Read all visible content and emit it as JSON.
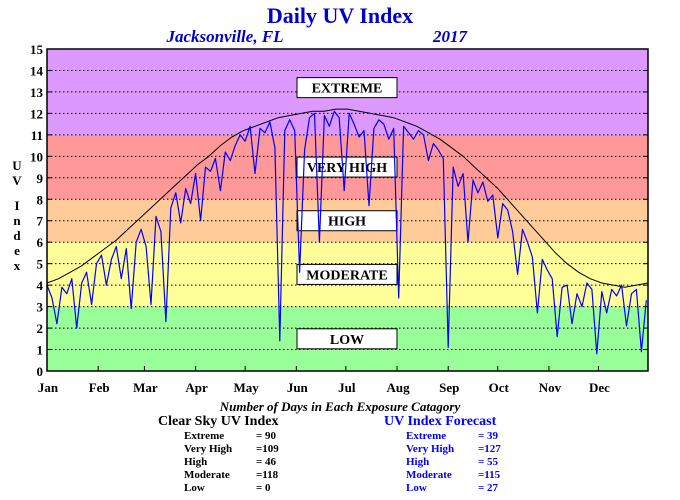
{
  "chart_data": {
    "type": "line",
    "title": "Daily UV Index",
    "location": "Jacksonville, FL",
    "year": "2017",
    "ylabel": "UV Index",
    "ylim": [
      0,
      15
    ],
    "yticks": [
      0,
      1,
      2,
      3,
      4,
      5,
      6,
      7,
      8,
      9,
      10,
      11,
      12,
      13,
      14,
      15
    ],
    "xlim": [
      1,
      365
    ],
    "xticks": [
      {
        "label": "Jan",
        "day": 1
      },
      {
        "label": "Feb",
        "day": 32
      },
      {
        "label": "Mar",
        "day": 60
      },
      {
        "label": "Apr",
        "day": 91
      },
      {
        "label": "May",
        "day": 121
      },
      {
        "label": "Jun",
        "day": 152
      },
      {
        "label": "Jul",
        "day": 182
      },
      {
        "label": "Aug",
        "day": 213
      },
      {
        "label": "Sep",
        "day": 244
      },
      {
        "label": "Oct",
        "day": 274
      },
      {
        "label": "Nov",
        "day": 305
      },
      {
        "label": "Dec",
        "day": 335
      }
    ],
    "grid": "horizontal dotted",
    "zones": [
      {
        "label": "LOW",
        "from": 0,
        "to": 3,
        "color": "#99ff99"
      },
      {
        "label": "MODERATE",
        "from": 3,
        "to": 6,
        "color": "#ffff99"
      },
      {
        "label": "HIGH",
        "from": 6,
        "to": 8,
        "color": "#ffcc99"
      },
      {
        "label": "VERY HIGH",
        "from": 8,
        "to": 11,
        "color": "#ff9999"
      },
      {
        "label": "EXTREME",
        "from": 11,
        "to": 15,
        "color": "#dd99ff"
      }
    ],
    "series": [
      {
        "name": "Clear Sky UV Index",
        "color": "#000000",
        "x": [
          1,
          8,
          15,
          22,
          29,
          36,
          43,
          50,
          57,
          64,
          71,
          78,
          85,
          92,
          99,
          106,
          113,
          120,
          127,
          134,
          141,
          148,
          155,
          162,
          169,
          176,
          183,
          190,
          197,
          204,
          211,
          218,
          225,
          232,
          239,
          246,
          253,
          260,
          267,
          274,
          281,
          288,
          295,
          302,
          309,
          316,
          323,
          330,
          337,
          344,
          351,
          358,
          365
        ],
        "values": [
          4.1,
          4.3,
          4.6,
          4.9,
          5.3,
          5.7,
          6.1,
          6.6,
          7.1,
          7.6,
          8.1,
          8.6,
          9.1,
          9.6,
          10.0,
          10.5,
          10.9,
          11.2,
          11.4,
          11.6,
          11.8,
          11.9,
          12.0,
          12.1,
          12.1,
          12.2,
          12.2,
          12.1,
          12.0,
          11.9,
          11.8,
          11.6,
          11.4,
          11.1,
          10.8,
          10.4,
          10.0,
          9.5,
          9.0,
          8.5,
          7.9,
          7.3,
          6.7,
          6.1,
          5.5,
          5.0,
          4.6,
          4.3,
          4.1,
          4.0,
          3.9,
          4.0,
          4.1
        ]
      },
      {
        "name": "UV Index Forecast",
        "color": "#0000ff",
        "x": [
          1,
          4,
          7,
          10,
          13,
          16,
          19,
          22,
          25,
          28,
          31,
          34,
          37,
          40,
          43,
          46,
          49,
          52,
          55,
          58,
          61,
          64,
          67,
          70,
          73,
          76,
          79,
          82,
          85,
          88,
          91,
          94,
          97,
          100,
          103,
          106,
          109,
          112,
          115,
          118,
          121,
          124,
          127,
          130,
          133,
          136,
          139,
          142,
          145,
          148,
          151,
          154,
          157,
          160,
          163,
          166,
          169,
          172,
          175,
          178,
          181,
          184,
          187,
          190,
          193,
          196,
          199,
          202,
          205,
          208,
          211,
          214,
          217,
          220,
          223,
          226,
          229,
          232,
          235,
          238,
          241,
          244,
          247,
          250,
          253,
          256,
          259,
          262,
          265,
          268,
          271,
          274,
          277,
          280,
          283,
          286,
          289,
          292,
          295,
          298,
          301,
          304,
          307,
          310,
          313,
          316,
          319,
          322,
          325,
          328,
          331,
          334,
          337,
          340,
          343,
          346,
          349,
          352,
          355,
          358,
          361,
          364
        ],
        "values": [
          4.0,
          3.4,
          2.2,
          3.9,
          3.6,
          4.3,
          2.0,
          4.1,
          4.6,
          3.1,
          5.0,
          5.4,
          4.0,
          5.2,
          5.8,
          4.3,
          5.7,
          2.9,
          6.0,
          6.6,
          5.8,
          3.1,
          7.2,
          6.5,
          2.3,
          7.6,
          8.3,
          6.9,
          8.5,
          7.8,
          9.2,
          7.0,
          9.5,
          9.3,
          9.9,
          8.4,
          10.2,
          9.8,
          10.5,
          11.0,
          10.7,
          11.4,
          9.2,
          11.3,
          11.1,
          11.6,
          10.4,
          1.4,
          11.2,
          11.7,
          11.2,
          4.6,
          10.3,
          11.8,
          12.0,
          6.0,
          11.9,
          11.4,
          12.1,
          11.8,
          8.4,
          12.0,
          11.5,
          10.9,
          11.2,
          7.7,
          11.3,
          11.7,
          11.5,
          10.8,
          11.3,
          3.4,
          11.4,
          11.1,
          10.8,
          11.2,
          11.0,
          9.8,
          10.6,
          10.3,
          9.9,
          1.1,
          9.5,
          8.6,
          9.2,
          6.0,
          8.9,
          8.3,
          8.8,
          7.9,
          8.2,
          6.2,
          7.8,
          7.5,
          6.5,
          4.5,
          6.6,
          6.0,
          5.3,
          2.7,
          5.2,
          4.7,
          4.3,
          1.6,
          3.9,
          4.0,
          2.2,
          3.6,
          3.0,
          4.1,
          3.8,
          0.8,
          3.7,
          2.7,
          3.8,
          3.5,
          4.0,
          2.1,
          3.6,
          3.8,
          0.9,
          3.3
        ]
      }
    ],
    "counts_title": "Number of Days in Each Exposure Catagory",
    "counts": {
      "clear_sky": {
        "title": "Clear Sky UV Index",
        "rows": [
          {
            "name": "Extreme",
            "value": "= 90"
          },
          {
            "name": "Very High",
            "value": "=109"
          },
          {
            "name": "High",
            "value": "= 46"
          },
          {
            "name": "Moderate",
            "value": "=118"
          },
          {
            "name": "Low",
            "value": "=   0"
          }
        ]
      },
      "forecast": {
        "title": "UV Index Forecast",
        "rows": [
          {
            "name": "Extreme",
            "value": "= 39"
          },
          {
            "name": "Very High",
            "value": "=127"
          },
          {
            "name": "High",
            "value": "= 55"
          },
          {
            "name": "Moderate",
            "value": "=115"
          },
          {
            "name": "Low",
            "value": "= 27"
          }
        ]
      }
    }
  }
}
